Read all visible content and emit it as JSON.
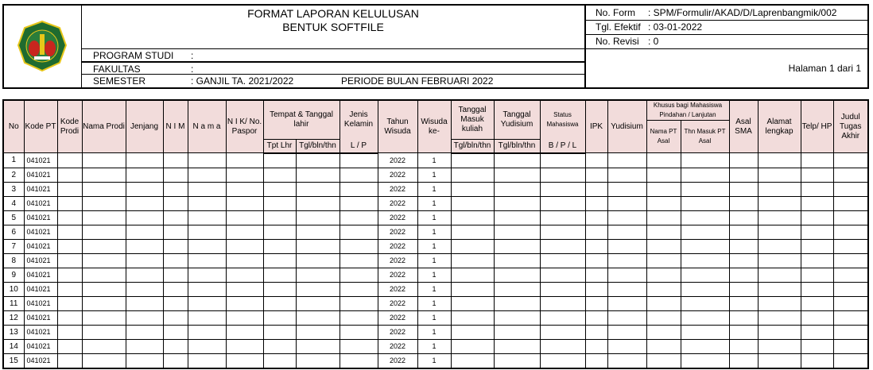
{
  "header": {
    "title_line1": "FORMAT LAPORAN KELULUSAN",
    "title_line2": "BENTUK SOFTFILE",
    "logo_text": "UNIVERSITAS JENDERAL ACHMAD YANI CIMAHI",
    "program_studi": {
      "label": "PROGRAM STUDI",
      "value": ":"
    },
    "fakultas": {
      "label": "FAKULTAS",
      "value": ":"
    },
    "semester": {
      "label": "SEMESTER",
      "value": ": GANJIL TA. 2021/2022",
      "periode": "PERIODE BULAN FEBRUARI 2022"
    },
    "no_form": {
      "label": "No. Form",
      "value": ": SPM/Formulir/AKAD/D/Laprenbangmik/002"
    },
    "tgl_efektif": {
      "label": "Tgl. Efektif",
      "value": ": 03-01-2022"
    },
    "no_revisi": {
      "label": "No. Revisi",
      "value": ": 0"
    },
    "halaman": "Halaman 1 dari 1"
  },
  "table": {
    "header_bg": "#f2dcdb",
    "columns": {
      "no": "No",
      "kode_pt": "Kode PT",
      "kode_prodi": "Kode Prodi",
      "nama_prodi": "Nama Prodi",
      "jenjang": "Jenjang",
      "nim": "N I M",
      "nama": "N a m a",
      "nik": "N I K/ No. Paspor",
      "ttl": "Tempat & Tanggal lahir",
      "tpt_lhr": "Tpt Lhr",
      "tgl_lhr": "Tgl/bln/thn",
      "jenis_kelamin": "Jenis Kelamin",
      "jk_sub": "L / P",
      "tahun_wisuda": "Tahun Wisuda",
      "wisuda_ke": "Wisuda ke-",
      "tgl_masuk": "Tanggal Masuk kuliah",
      "tgl_masuk_sub": "Tgl/bln/thn",
      "tgl_yudisium": "Tanggal Yudisium",
      "tgl_yudisium_sub": "Tgl/bln/thn",
      "status": "Status Mahasiswa",
      "status_sub": "B / P / L",
      "ipk": "IPK",
      "yudisium": "Yudisium",
      "khusus": "Khusus bagi Mahasiswa Pindahan / Lanjutan",
      "nama_pt_asal": "Nama PT Asal",
      "thn_masuk_pt": "Thn Masuk PT Asal",
      "asal_sma": "Asal SMA",
      "alamat": "Alamat lengkap",
      "telp": "Telp/ HP",
      "judul": "Judul Tugas Akhir"
    },
    "rows": [
      {
        "no": "1",
        "kode_pt": "041021",
        "tahun": "2022",
        "ke": "1"
      },
      {
        "no": "2",
        "kode_pt": "041021",
        "tahun": "2022",
        "ke": "1"
      },
      {
        "no": "3",
        "kode_pt": "041021",
        "tahun": "2022",
        "ke": "1"
      },
      {
        "no": "4",
        "kode_pt": "041021",
        "tahun": "2022",
        "ke": "1"
      },
      {
        "no": "5",
        "kode_pt": "041021",
        "tahun": "2022",
        "ke": "1"
      },
      {
        "no": "6",
        "kode_pt": "041021",
        "tahun": "2022",
        "ke": "1"
      },
      {
        "no": "7",
        "kode_pt": "041021",
        "tahun": "2022",
        "ke": "1"
      },
      {
        "no": "8",
        "kode_pt": "041021",
        "tahun": "2022",
        "ke": "1"
      },
      {
        "no": "9",
        "kode_pt": "041021",
        "tahun": "2022",
        "ke": "1"
      },
      {
        "no": "10",
        "kode_pt": "041021",
        "tahun": "2022",
        "ke": "1"
      },
      {
        "no": "11",
        "kode_pt": "041021",
        "tahun": "2022",
        "ke": "1"
      },
      {
        "no": "12",
        "kode_pt": "041021",
        "tahun": "2022",
        "ke": "1"
      },
      {
        "no": "13",
        "kode_pt": "041021",
        "tahun": "2022",
        "ke": "1"
      },
      {
        "no": "14",
        "kode_pt": "041021",
        "tahun": "2022",
        "ke": "1"
      },
      {
        "no": "15",
        "kode_pt": "041021",
        "tahun": "2022",
        "ke": "1"
      }
    ]
  }
}
